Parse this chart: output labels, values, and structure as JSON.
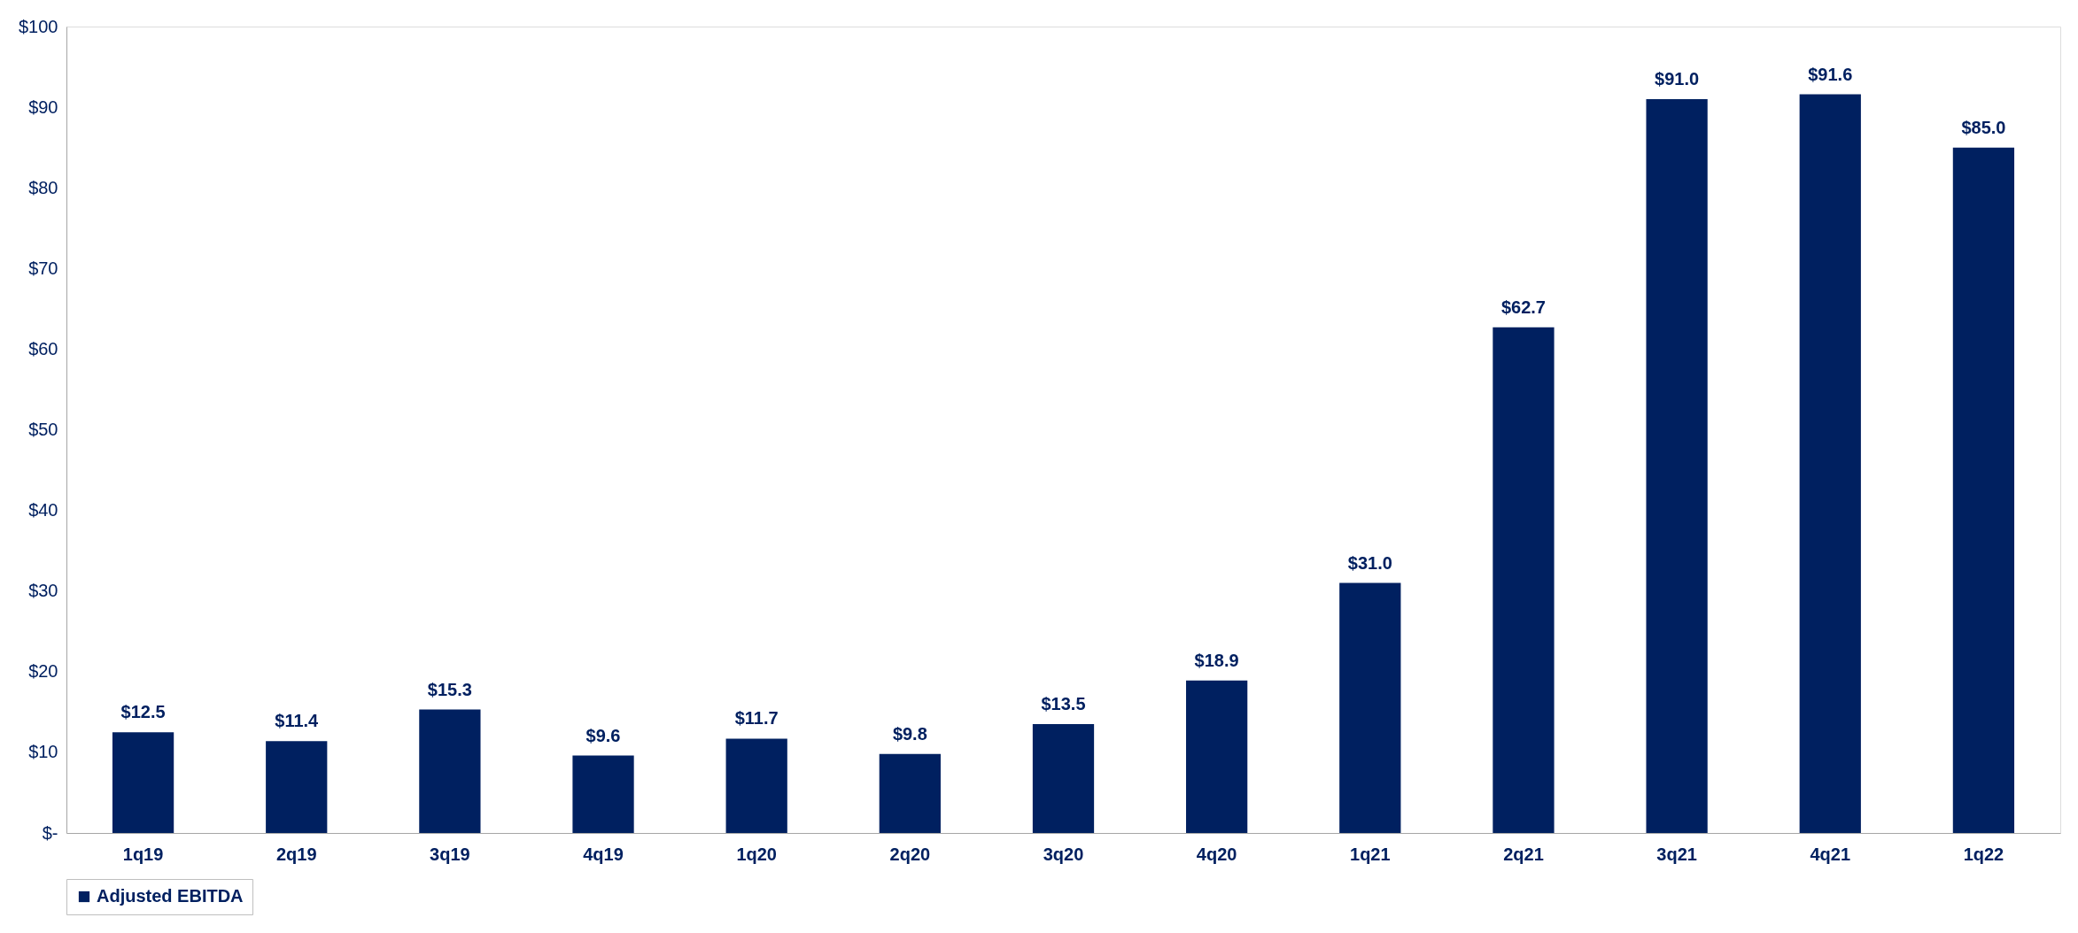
{
  "chart_data": {
    "type": "bar",
    "categories": [
      "1q19",
      "2q19",
      "3q19",
      "4q19",
      "1q20",
      "2q20",
      "3q20",
      "4q20",
      "1q21",
      "2q21",
      "3q21",
      "4q21",
      "1q22"
    ],
    "series": [
      {
        "name": "Adjusted EBITDA",
        "color": "#002060",
        "values": [
          12.5,
          11.4,
          15.3,
          9.6,
          11.7,
          9.8,
          13.5,
          18.9,
          31.0,
          62.7,
          91.0,
          91.6,
          85.0
        ],
        "value_labels": [
          "$12.5",
          "$11.4",
          "$15.3",
          "$9.6",
          "$11.7",
          "$9.8",
          "$13.5",
          "$18.9",
          "$31.0",
          "$62.7",
          "$91.0",
          "$91.6",
          "$85.0"
        ]
      }
    ],
    "ylim": [
      0,
      100
    ],
    "yticks": [
      {
        "value": 0,
        "label": "$-"
      },
      {
        "value": 10,
        "label": "$10"
      },
      {
        "value": 20,
        "label": "$20"
      },
      {
        "value": 30,
        "label": "$30"
      },
      {
        "value": 40,
        "label": "$40"
      },
      {
        "value": 50,
        "label": "$50"
      },
      {
        "value": 60,
        "label": "$60"
      },
      {
        "value": 70,
        "label": "$70"
      },
      {
        "value": 80,
        "label": "$80"
      },
      {
        "value": 90,
        "label": "$90"
      },
      {
        "value": 100,
        "label": "$100"
      }
    ],
    "grid": false,
    "legend": "bottom"
  }
}
